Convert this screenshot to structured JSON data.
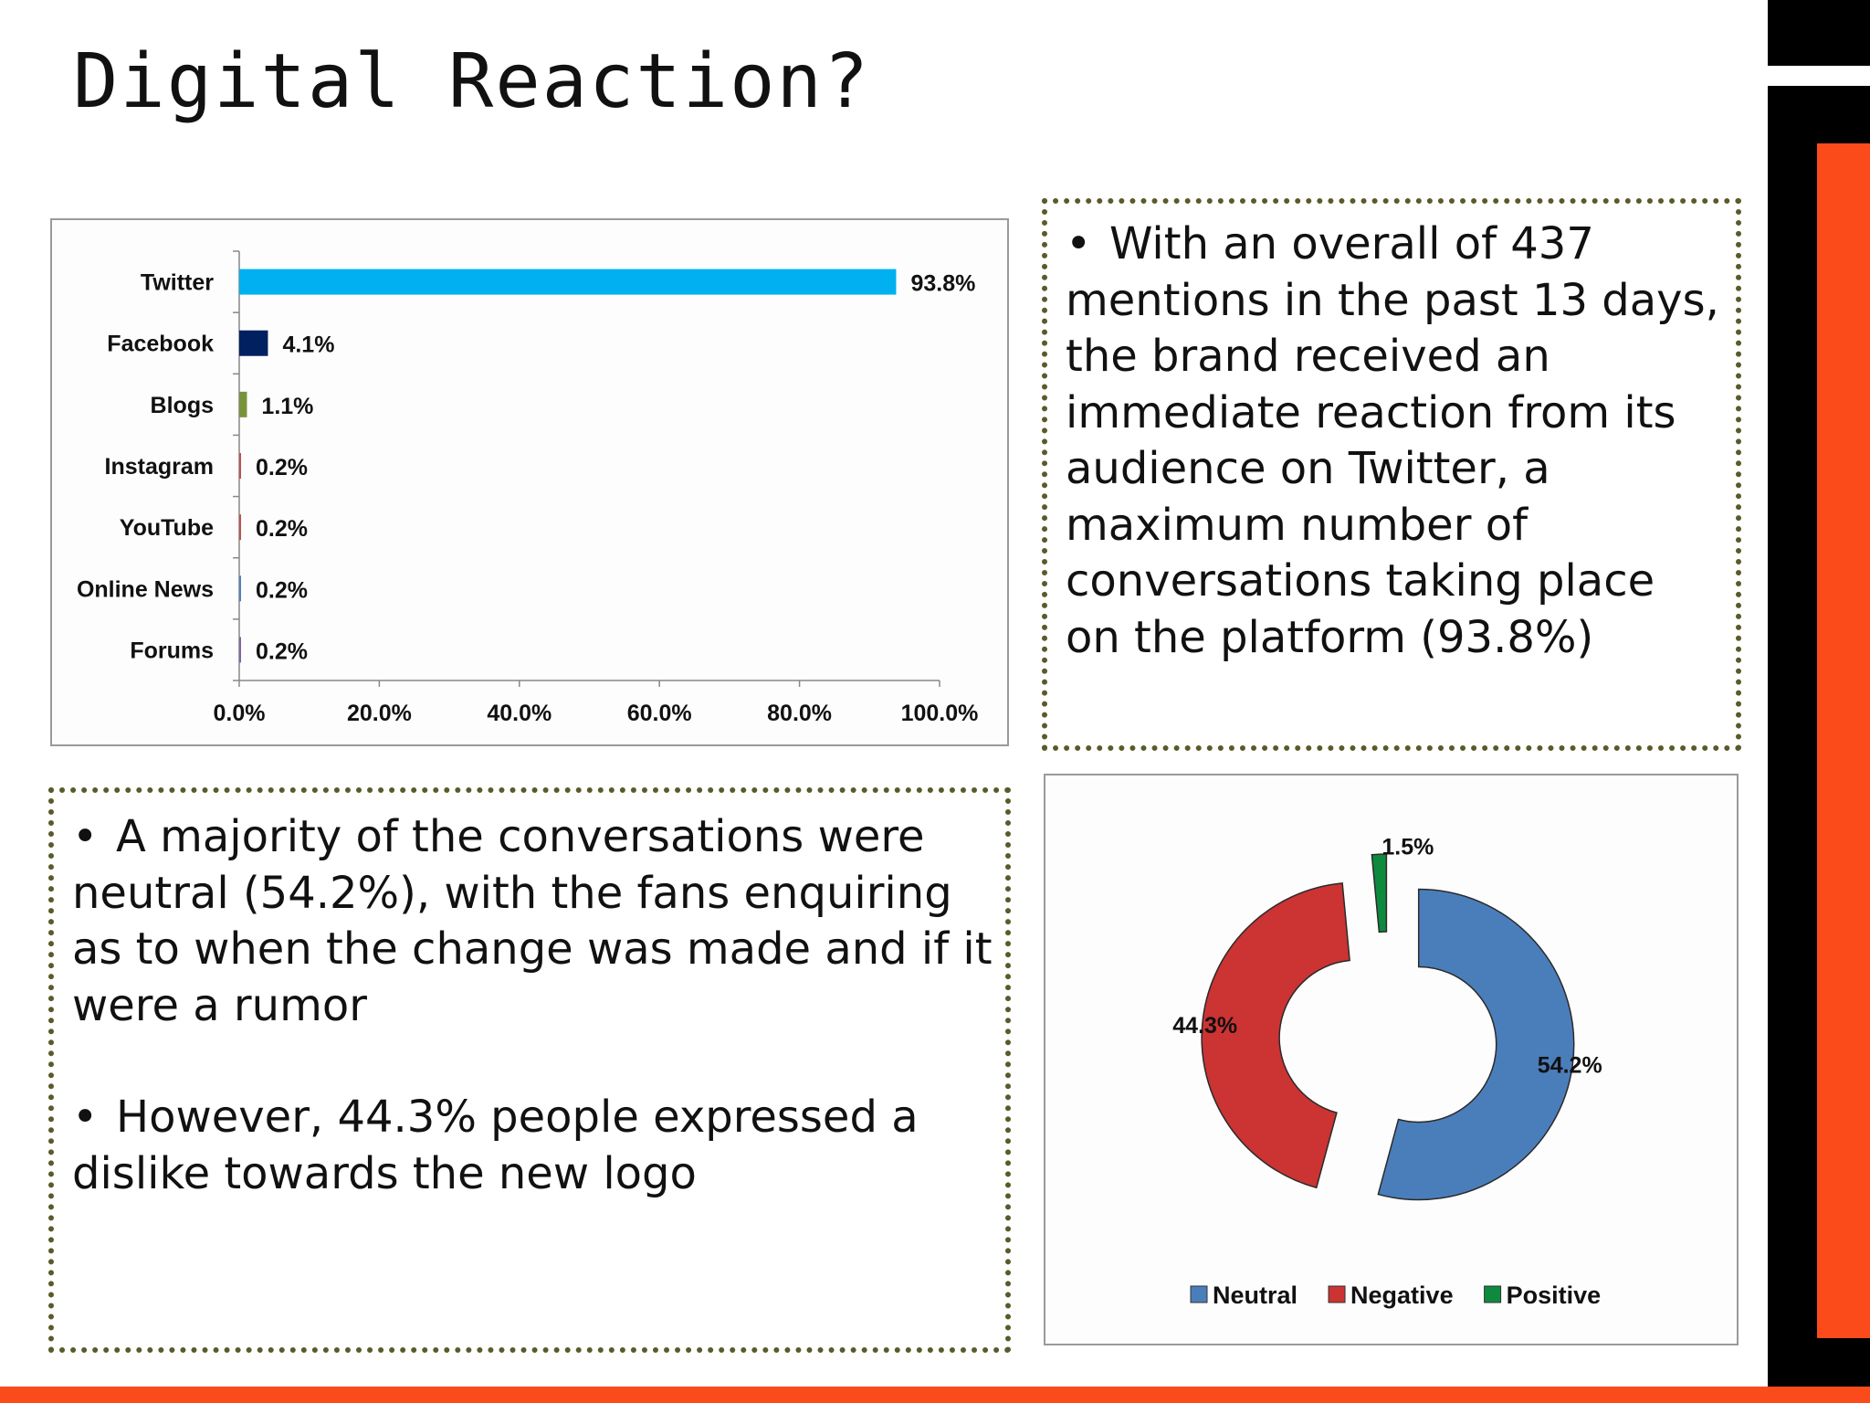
{
  "slide": {
    "title": "Digital Reaction?",
    "accent_orange": "#fc4b1a",
    "bullet_glyph": "•"
  },
  "chart_data": [
    {
      "type": "bar",
      "orientation": "horizontal",
      "categories": [
        "Twitter",
        "Facebook",
        "Blogs",
        "Instagram",
        "YouTube",
        "Online News",
        "Forums"
      ],
      "values": [
        93.8,
        4.1,
        1.1,
        0.2,
        0.2,
        0.2,
        0.2
      ],
      "data_labels": [
        "93.8%",
        "4.1%",
        "1.1%",
        "0.2%",
        "0.2%",
        "0.2%",
        "0.2%"
      ],
      "colors": [
        "#00b0f0",
        "#002060",
        "#77933c",
        "#c0504d",
        "#c0504d",
        "#4f81bd",
        "#8064a2"
      ],
      "xlim": [
        0,
        100
      ],
      "xticks": [
        "0.0%",
        "20.0%",
        "40.0%",
        "60.0%",
        "80.0%",
        "100.0%"
      ],
      "title": "",
      "xlabel": "",
      "ylabel": "",
      "grid": false,
      "legend": "none"
    },
    {
      "type": "pie",
      "style": "exploded donut",
      "categories": [
        "Neutral",
        "Negative",
        "Positive"
      ],
      "values": [
        54.2,
        44.3,
        1.5
      ],
      "data_labels": [
        "54.2%",
        "44.3%",
        "1.5%"
      ],
      "colors": [
        "#4a7ebb",
        "#cc3333",
        "#0e8a3e"
      ],
      "legend": "bottom",
      "title": ""
    }
  ],
  "text_boxes": {
    "twitter": {
      "paragraphs": [
        "With an overall of 437 mentions in the past 13 days, the brand received an immediate reaction from its audience on Twitter, a maximum number of conversations taking place on the platform (93.8%)"
      ]
    },
    "sentiment": {
      "paragraphs": [
        "A majority of the conversations were neutral (54.2%), with the fans enquiring as to when the change was made and if it were a rumor",
        "However, 44.3% people expressed a dislike towards the new logo"
      ]
    }
  }
}
